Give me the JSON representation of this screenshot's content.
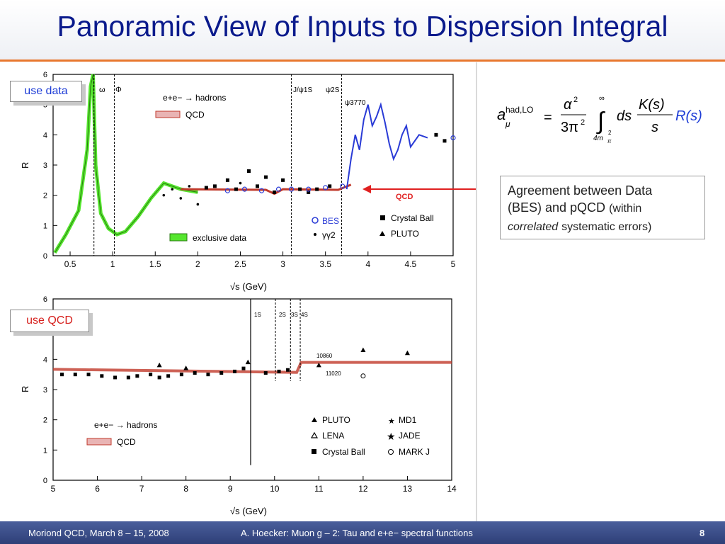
{
  "title": "Panoramic View of Inputs to Dispersion Integral",
  "labels": {
    "use_data": "use data",
    "use_qcd": "use QCD"
  },
  "callout": {
    "line1": "Agreement between Data",
    "line2a": "(BES) and pQCD",
    "line2b": "(within",
    "line3a": "correlated",
    "line3b": "systematic errors)"
  },
  "formula": {
    "a": "a",
    "sup": "had,LO",
    "sub": "μ",
    "eq": "=",
    "num": "α",
    "num_exp": "2",
    "den": "3π",
    "den_exp": "2",
    "upper": "∞",
    "lower": "4m",
    "lower_sub": "π",
    "lower_exp": "2",
    "ds": "ds",
    "K": "K(s)",
    "s": "s",
    "R": "R(s)"
  },
  "footer": {
    "left": "Moriond QCD, March 8 – 15, 2008",
    "center": "A. Hoecker: Muon g – 2: Tau and e+e− spectral functions",
    "page": "8"
  },
  "top_chart": {
    "xlabel": "√s   (GeV)",
    "ylabel": "R",
    "x_ticks": [
      "0.5",
      "1",
      "1.5",
      "2",
      "2.5",
      "3",
      "3.5",
      "4",
      "4.5",
      "5"
    ],
    "y_ticks": [
      "0",
      "1",
      "2",
      "3",
      "4",
      "5",
      "6"
    ],
    "resonances": [
      "ω",
      "Φ",
      "J/ψ1S",
      "ψ2S",
      "ψ3770"
    ],
    "legend": {
      "process": "e+e− → hadrons",
      "qcd": "QCD",
      "exclusive": "exclusive data",
      "bes": "BES",
      "gg2": "γγ2",
      "crystal_ball": "Crystal Ball",
      "pluto": "PLUTO"
    },
    "arrow_label": "QCD",
    "colors": {
      "exclusive": "#55e62e",
      "bes": "#2a3bd6",
      "qcd": "#c0392b",
      "arrow": "#e02020"
    }
  },
  "bottom_chart": {
    "xlabel": "√s   (GeV)",
    "ylabel": "R",
    "x_ticks": [
      "5",
      "6",
      "7",
      "8",
      "9",
      "10",
      "11",
      "12",
      "13",
      "14"
    ],
    "y_ticks": [
      "0",
      "1",
      "2",
      "3",
      "4",
      "5",
      "6"
    ],
    "resonances": [
      "1S",
      "2S",
      "3S",
      "4S"
    ],
    "annotations": [
      "10860",
      "11020"
    ],
    "legend": {
      "process": "e+e− → hadrons",
      "qcd": "QCD",
      "pluto": "PLUTO",
      "lena": "LENA",
      "crystal_ball": "Crystal Ball",
      "md1": "MD1",
      "jade": "JADE",
      "markj": "MARK J"
    }
  }
}
